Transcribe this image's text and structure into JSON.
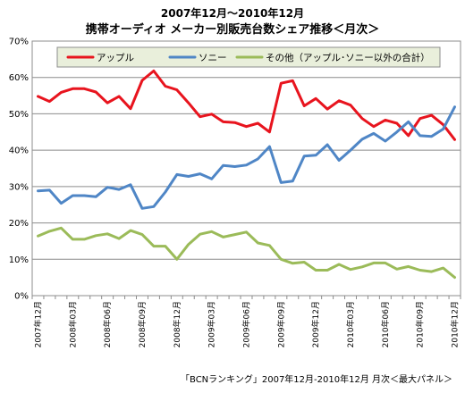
{
  "chart_data": {
    "type": "line",
    "title": "2007年12月～2010年12月",
    "subtitle": "携帯オーディオ メーカー別販売台数シェア推移＜月次＞",
    "ylim": [
      0,
      70
    ],
    "yticks": [
      "0%",
      "10%",
      "20%",
      "30%",
      "40%",
      "50%",
      "60%",
      "70%"
    ],
    "yticks_values": [
      0,
      10,
      20,
      30,
      40,
      50,
      60,
      70
    ],
    "grid": true,
    "legend": "top",
    "categories": [
      "2007年12月",
      "2008年01月",
      "2008年02月",
      "2008年03月",
      "2008年04月",
      "2008年05月",
      "2008年06月",
      "2008年07月",
      "2008年08月",
      "2008年09月",
      "2008年10月",
      "2008年11月",
      "2008年12月",
      "2009年01月",
      "2009年02月",
      "2009年03月",
      "2009年04月",
      "2009年05月",
      "2009年06月",
      "2009年07月",
      "2009年08月",
      "2009年09月",
      "2009年10月",
      "2009年11月",
      "2009年12月",
      "2010年01月",
      "2010年02月",
      "2010年03月",
      "2010年04月",
      "2010年05月",
      "2010年06月",
      "2010年07月",
      "2010年08月",
      "2010年09月",
      "2010年10月",
      "2010年11月",
      "2010年12月"
    ],
    "xtick_labels": [
      "2007年12月",
      "2008年03月",
      "2008年06月",
      "2008年09月",
      "2008年12月",
      "2009年03月",
      "2009年06月",
      "2009年09月",
      "2009年12月",
      "2010年03月",
      "2010年06月",
      "2010年09月",
      "2010年12月"
    ],
    "xtick_indices": [
      0,
      3,
      6,
      9,
      12,
      15,
      18,
      21,
      24,
      27,
      30,
      33,
      36
    ],
    "series": [
      {
        "name": "アップル",
        "color": "#e8141e",
        "values": [
          54.8,
          53.4,
          55.9,
          56.9,
          56.9,
          56.0,
          53.0,
          54.8,
          51.4,
          59.2,
          61.8,
          57.6,
          56.6,
          53.0,
          49.2,
          49.9,
          47.8,
          47.6,
          46.5,
          47.4,
          45.0,
          58.4,
          59.1,
          52.2,
          54.2,
          51.3,
          53.6,
          52.4,
          48.7,
          46.5,
          48.3,
          47.4,
          44.0,
          48.7,
          49.6,
          47.0,
          42.9
        ]
      },
      {
        "name": "ソニー",
        "color": "#4f86c6",
        "values": [
          28.8,
          29.0,
          25.4,
          27.5,
          27.5,
          27.2,
          29.8,
          29.2,
          30.5,
          24.0,
          24.5,
          28.5,
          33.3,
          32.8,
          33.5,
          32.1,
          35.8,
          35.5,
          35.9,
          37.6,
          41.0,
          31.1,
          31.5,
          38.4,
          38.6,
          41.5,
          37.2,
          40.0,
          43.0,
          44.6,
          42.5,
          45.0,
          47.8,
          44.0,
          43.8,
          45.8,
          51.9
        ]
      },
      {
        "name": "その他（アップル･ソニー以外の合計）",
        "color": "#9bbb59",
        "values": [
          16.4,
          17.7,
          18.6,
          15.5,
          15.5,
          16.5,
          17.0,
          15.7,
          17.9,
          16.8,
          13.6,
          13.6,
          10.0,
          14.1,
          16.9,
          17.6,
          16.1,
          16.8,
          17.5,
          14.5,
          13.8,
          10.0,
          8.9,
          9.2,
          7.0,
          7.0,
          8.6,
          7.2,
          7.9,
          9.0,
          9.0,
          7.3,
          8.0,
          7.0,
          6.6,
          7.6,
          5.0
        ]
      }
    ],
    "footnote": "「BCNランキング」2007年12月-2010年12月 月次＜最大パネル＞"
  }
}
